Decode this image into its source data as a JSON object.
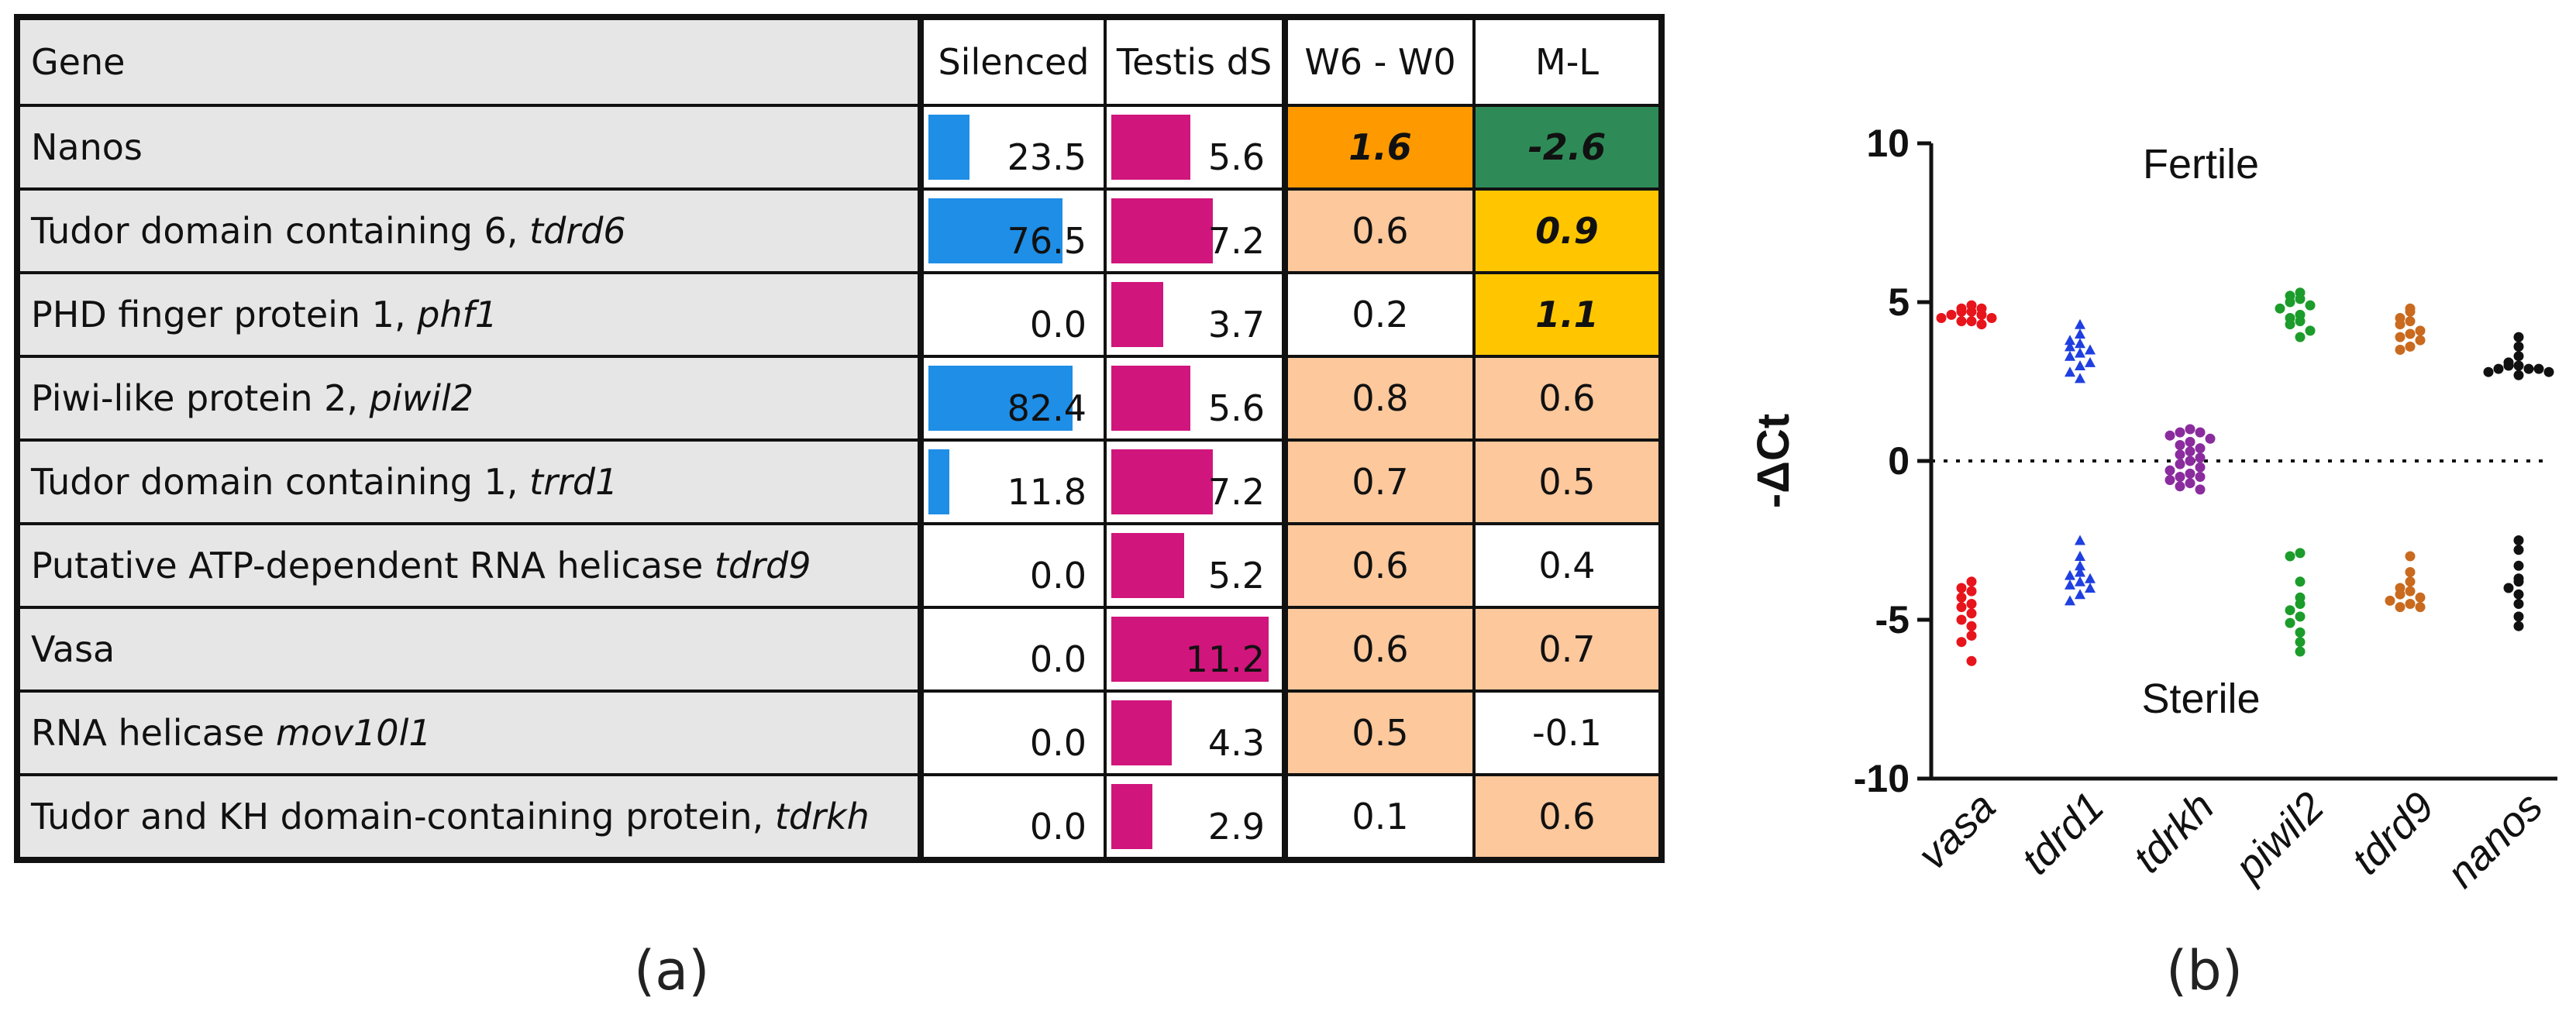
{
  "panel_labels": {
    "a": "(a)",
    "b": "(b)"
  },
  "table": {
    "headers": {
      "gene": "Gene",
      "silenced": "Silenced",
      "testis": "Testis dS",
      "w6w0": "W6 - W0",
      "ml": "M-L"
    },
    "colors": {
      "silenced_bar": "#1e8ee6",
      "testis_bar": "#d0157c"
    },
    "rows": [
      {
        "name": "Nanos",
        "italic": "",
        "silenced": 23.5,
        "silenced_text": "23.5",
        "testis": 5.6,
        "testis_text": "5.6",
        "w6w0": "1.6",
        "w6w0_color": "#ff9900",
        "w6w0_bold": true,
        "ml": "-2.6",
        "ml_color": "#2e8b57",
        "ml_bold": true
      },
      {
        "name": "Tudor domain containing 6, ",
        "italic": "tdrd6",
        "silenced": 76.5,
        "silenced_text": "76.5",
        "testis": 7.2,
        "testis_text": "7.2",
        "w6w0": "0.6",
        "w6w0_color": "#fcc89c",
        "w6w0_bold": false,
        "ml": "0.9",
        "ml_color": "#ffc600",
        "ml_bold": true
      },
      {
        "name": "PHD finger protein 1, ",
        "italic": "phf1",
        "silenced": 0.0,
        "silenced_text": "0.0",
        "testis": 3.7,
        "testis_text": "3.7",
        "w6w0": "0.2",
        "w6w0_color": "#ffffff",
        "w6w0_bold": false,
        "ml": "1.1",
        "ml_color": "#ffc600",
        "ml_bold": true
      },
      {
        "name": "Piwi-like protein 2, ",
        "italic": "piwil2",
        "silenced": 82.4,
        "silenced_text": "82.4",
        "testis": 5.6,
        "testis_text": "5.6",
        "w6w0": "0.8",
        "w6w0_color": "#fcc89c",
        "w6w0_bold": false,
        "ml": "0.6",
        "ml_color": "#fcc89c",
        "ml_bold": false
      },
      {
        "name": "Tudor domain containing 1, ",
        "italic": "trrd1",
        "silenced": 11.8,
        "silenced_text": "11.8",
        "testis": 7.2,
        "testis_text": "7.2",
        "w6w0": "0.7",
        "w6w0_color": "#fcc89c",
        "w6w0_bold": false,
        "ml": "0.5",
        "ml_color": "#fcc89c",
        "ml_bold": false
      },
      {
        "name": "Putative ATP-dependent RNA helicase ",
        "italic": "tdrd9",
        "silenced": 0.0,
        "silenced_text": "0.0",
        "testis": 5.2,
        "testis_text": "5.2",
        "w6w0": "0.6",
        "w6w0_color": "#fcc89c",
        "w6w0_bold": false,
        "ml": "0.4",
        "ml_color": "#ffffff",
        "ml_bold": false
      },
      {
        "name": "Vasa",
        "italic": "",
        "silenced": 0.0,
        "silenced_text": "0.0",
        "testis": 11.2,
        "testis_text": "11.2",
        "w6w0": "0.6",
        "w6w0_color": "#fcc89c",
        "w6w0_bold": false,
        "ml": "0.7",
        "ml_color": "#fcc89c",
        "ml_bold": false
      },
      {
        "name": "RNA helicase ",
        "italic": "mov10l1",
        "silenced": 0.0,
        "silenced_text": "0.0",
        "testis": 4.3,
        "testis_text": "4.3",
        "w6w0": "0.5",
        "w6w0_color": "#fcc89c",
        "w6w0_bold": false,
        "ml": "-0.1",
        "ml_color": "#ffffff",
        "ml_bold": false
      },
      {
        "name": "Tudor and KH domain-containing protein, ",
        "italic": "tdrkh",
        "silenced": 0.0,
        "silenced_text": "0.0",
        "testis": 2.9,
        "testis_text": "2.9",
        "w6w0": "0.1",
        "w6w0_color": "#ffffff",
        "w6w0_bold": false,
        "ml": "0.6",
        "ml_color": "#fcc89c",
        "ml_bold": false
      }
    ]
  },
  "chart_data": {
    "type": "scatter",
    "title": "",
    "ylabel": "-ΔCt",
    "xlabel": "",
    "ylim": [
      -10,
      10
    ],
    "yticks": [
      "10",
      "5",
      "0",
      "-5",
      "-10"
    ],
    "reference_line": 0,
    "annotations": {
      "top": "Fertile",
      "bottom": "Sterile"
    },
    "categories": [
      "vasa",
      "tdrd1",
      "tdrkh",
      "piwil2",
      "tdrd9",
      "nanos"
    ],
    "series": [
      {
        "name": "vasa",
        "color": "#e8141c",
        "marker": "circle",
        "fertile": [
          4.9,
          4.8,
          4.8,
          4.7,
          4.7,
          4.6,
          4.6,
          4.5,
          4.5,
          4.4,
          4.4,
          4.3
        ],
        "sterile": [
          -3.8,
          -4.0,
          -4.1,
          -4.3,
          -4.5,
          -4.6,
          -4.8,
          -5.0,
          -5.2,
          -5.5,
          -5.7,
          -6.3
        ]
      },
      {
        "name": "tdrd1",
        "color": "#1f3fe0",
        "marker": "triangle",
        "fertile": [
          4.3,
          4.0,
          3.8,
          3.7,
          3.6,
          3.5,
          3.4,
          3.3,
          3.1,
          3.0,
          2.8,
          2.6
        ],
        "sterile": [
          -2.5,
          -3.0,
          -3.3,
          -3.5,
          -3.6,
          -3.7,
          -3.8,
          -3.9,
          -4.0,
          -4.2,
          -4.4
        ]
      },
      {
        "name": "tdrkh",
        "color": "#8a2c9e",
        "marker": "circle",
        "fertile": [
          1.0,
          0.9,
          0.9,
          0.8,
          0.7,
          0.6,
          0.5,
          0.4,
          0.3,
          0.2,
          0.1,
          0.0,
          -0.1,
          -0.2,
          -0.3,
          -0.4,
          -0.5,
          -0.5,
          -0.6,
          -0.7,
          -0.8,
          -0.9
        ],
        "sterile": []
      },
      {
        "name": "piwil2",
        "color": "#1c9c2a",
        "marker": "circle",
        "fertile": [
          5.3,
          5.2,
          5.1,
          5.0,
          4.9,
          4.8,
          4.6,
          4.5,
          4.4,
          4.3,
          4.1,
          3.9
        ],
        "sterile": [
          -2.9,
          -3.0,
          -3.8,
          -4.3,
          -4.5,
          -4.7,
          -4.9,
          -5.1,
          -5.4,
          -5.7,
          -6.0
        ]
      },
      {
        "name": "tdrd9",
        "color": "#c96a1e",
        "marker": "circle",
        "fertile": [
          4.8,
          4.7,
          4.5,
          4.4,
          4.3,
          4.1,
          4.0,
          3.9,
          3.8,
          3.6,
          3.5
        ],
        "sterile": [
          -3.0,
          -3.5,
          -3.8,
          -4.0,
          -4.1,
          -4.2,
          -4.3,
          -4.4,
          -4.5,
          -4.6,
          -4.6
        ]
      },
      {
        "name": "nanos",
        "color": "#111111",
        "marker": "circle",
        "fertile": [
          3.9,
          3.6,
          3.3,
          3.1,
          3.0,
          3.0,
          2.9,
          2.9,
          2.9,
          2.8,
          2.8,
          2.7
        ],
        "sterile": [
          -2.5,
          -2.8,
          -3.3,
          -3.7,
          -3.8,
          -4.0,
          -4.2,
          -4.5,
          -4.9,
          -5.2
        ]
      }
    ]
  }
}
